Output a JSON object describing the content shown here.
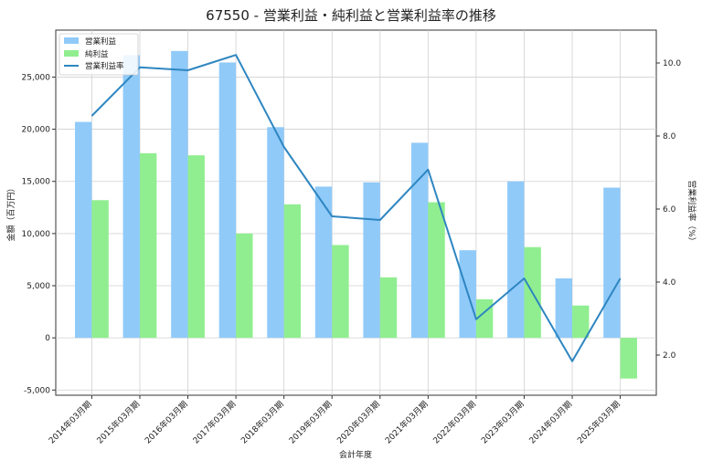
{
  "chart_data": {
    "type": "bar",
    "title": "67550 - 営業利益・純利益と営業利益率の推移",
    "xlabel": "会計年度",
    "ylabel": "金額（百万円）",
    "y2label": "営業利益率（%）",
    "categories": [
      "2014年03月期",
      "2015年03月期",
      "2016年03月期",
      "2017年03月期",
      "2018年03月期",
      "2019年03月期",
      "2020年03月期",
      "2021年03月期",
      "2022年03月期",
      "2023年03月期",
      "2024年03月期",
      "2025年03月期"
    ],
    "series": [
      {
        "name": "営業利益",
        "kind": "bar",
        "axis": "left",
        "color": "#90caf9",
        "values": [
          20700,
          27100,
          27500,
          26400,
          20200,
          14500,
          14900,
          18700,
          8400,
          15000,
          5700,
          14400
        ]
      },
      {
        "name": "純利益",
        "kind": "bar",
        "axis": "left",
        "color": "#90ee90",
        "values": [
          13200,
          17700,
          17500,
          10000,
          12800,
          8900,
          5800,
          13000,
          3700,
          8700,
          3100,
          -3900
        ]
      },
      {
        "name": "営業利益率",
        "kind": "line",
        "axis": "right",
        "color": "#2e86c1",
        "values": [
          8.55,
          9.88,
          9.8,
          10.22,
          7.7,
          5.8,
          5.7,
          7.08,
          2.98,
          4.1,
          1.83,
          4.1
        ]
      }
    ],
    "ylim": [
      -5500,
      29500
    ],
    "y2lim": [
      0.9,
      10.9
    ],
    "yticks": [
      -5000,
      0,
      5000,
      10000,
      15000,
      20000,
      25000
    ],
    "yticklabels": [
      "-5,000",
      "0",
      "5,000",
      "10,000",
      "15,000",
      "20,000",
      "25,000"
    ],
    "y2ticks": [
      2,
      4,
      6,
      8,
      10
    ],
    "y2ticklabels": [
      "2.0",
      "4.0",
      "6.0",
      "8.0",
      "10.0"
    ],
    "grid": true,
    "legend_position": "top-left"
  }
}
